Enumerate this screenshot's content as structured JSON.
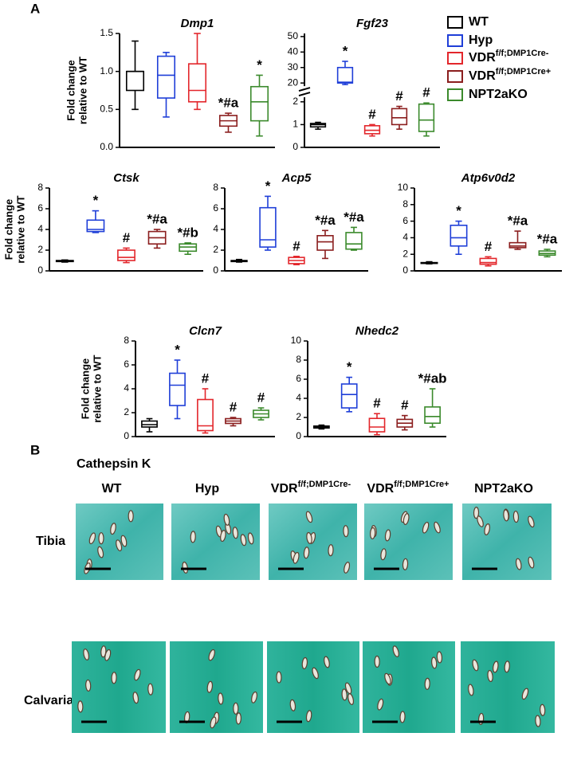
{
  "panel_a": {
    "label": "A"
  },
  "legend": {
    "entries": [
      {
        "label": "WT",
        "color": "#000000"
      },
      {
        "label": "Hyp",
        "color": "#1f3fd8"
      },
      {
        "label": "VDR",
        "label_sup": "f/f;DMP1Cre-",
        "color": "#e3262b"
      },
      {
        "label": "VDR",
        "label_sup": "f/f;DMP1Cre+",
        "color": "#8b1e1e"
      },
      {
        "label": "NPT2aKO",
        "color": "#3b8a2c"
      }
    ]
  },
  "chart_data": [
    {
      "type": "box",
      "title": "Dmp1",
      "ylabel": [
        "Fold change",
        "relative to WT"
      ],
      "ylim": [
        0,
        1.5
      ],
      "yticks": [
        {
          "value": 0,
          "label": "0.0"
        },
        {
          "value": 0.5,
          "label": "0.5"
        },
        {
          "value": 1,
          "label": "1.0"
        },
        {
          "value": 1.5,
          "label": "1.5"
        }
      ],
      "boxes": [
        {
          "stats": [
            0.5,
            0.75,
            1.0,
            1.0,
            1.4
          ]
        },
        {
          "stats": [
            0.4,
            0.65,
            0.95,
            1.2,
            1.25
          ]
        },
        {
          "stats": [
            0.5,
            0.6,
            0.75,
            1.1,
            1.5
          ]
        },
        {
          "stats": [
            0.2,
            0.28,
            0.35,
            0.42,
            0.45
          ],
          "annotation": "*#a"
        },
        {
          "stats": [
            0.15,
            0.35,
            0.6,
            0.8,
            0.95
          ],
          "annotation": "*"
        }
      ]
    },
    {
      "type": "box",
      "title": "Fgf23",
      "broken_axis": true,
      "ylim": [
        0,
        2.2
      ],
      "yticks": [
        0,
        1,
        2
      ],
      "upper_ylim": [
        18,
        52
      ],
      "upper_yticks": [
        20,
        30,
        40,
        50
      ],
      "boxes": [
        {
          "stats": [
            0.8,
            0.9,
            1.0,
            1.05,
            1.1
          ]
        },
        {
          "stats": [
            19,
            20,
            20.5,
            30,
            34
          ],
          "axis": "upper",
          "annotation": "*"
        },
        {
          "stats": [
            0.5,
            0.6,
            0.75,
            0.95,
            1.0
          ],
          "annotation": "#"
        },
        {
          "stats": [
            0.8,
            1.0,
            1.3,
            1.7,
            1.8
          ],
          "annotation": "#"
        },
        {
          "stats": [
            0.5,
            0.7,
            1.2,
            1.9,
            1.95
          ],
          "annotation": "#"
        }
      ]
    },
    {
      "type": "box",
      "title": "Ctsk",
      "ylabel": [
        "Fold change",
        "relative to WT"
      ],
      "ylim": [
        0,
        8
      ],
      "yticks": [
        0,
        2,
        4,
        6,
        8
      ],
      "boxes": [
        {
          "stats": [
            0.85,
            0.9,
            0.95,
            1.0,
            1.05
          ]
        },
        {
          "stats": [
            3.7,
            3.8,
            4.0,
            4.9,
            5.8
          ],
          "annotation": "*"
        },
        {
          "stats": [
            0.8,
            1.0,
            1.3,
            2.0,
            2.2
          ],
          "annotation": "#"
        },
        {
          "stats": [
            2.2,
            2.6,
            3.2,
            3.8,
            4.0
          ],
          "annotation": "*#a"
        },
        {
          "stats": [
            1.6,
            1.9,
            2.3,
            2.6,
            2.7
          ],
          "annotation": "*#b"
        }
      ]
    },
    {
      "type": "box",
      "title": "Acp5",
      "ylim": [
        0,
        8
      ],
      "yticks": [
        0,
        2,
        4,
        6,
        8
      ],
      "boxes": [
        {
          "stats": [
            0.85,
            0.9,
            0.95,
            1.0,
            1.1
          ]
        },
        {
          "stats": [
            2.0,
            2.3,
            3.0,
            6.1,
            7.2
          ],
          "annotation": "*"
        },
        {
          "stats": [
            0.6,
            0.7,
            1.0,
            1.3,
            1.4
          ],
          "annotation": "#"
        },
        {
          "stats": [
            1.2,
            2.0,
            2.8,
            3.4,
            3.9
          ],
          "annotation": "*#a"
        },
        {
          "stats": [
            2.0,
            2.1,
            2.6,
            3.7,
            4.2
          ],
          "annotation": "*#a"
        }
      ]
    },
    {
      "type": "box",
      "title": "Atp6v0d2",
      "ylim": [
        0,
        10
      ],
      "yticks": [
        0,
        2,
        4,
        6,
        8,
        10
      ],
      "boxes": [
        {
          "stats": [
            0.85,
            0.9,
            0.95,
            1.0,
            1.1
          ]
        },
        {
          "stats": [
            2.0,
            3.0,
            4.0,
            5.5,
            6.0
          ],
          "annotation": "*"
        },
        {
          "stats": [
            0.6,
            0.8,
            1.0,
            1.5,
            1.7
          ],
          "annotation": "#"
        },
        {
          "stats": [
            2.6,
            2.8,
            3.0,
            3.4,
            4.8
          ],
          "annotation": "*#a"
        },
        {
          "stats": [
            1.7,
            1.9,
            2.1,
            2.4,
            2.6
          ],
          "annotation": "*#a"
        }
      ]
    },
    {
      "type": "box",
      "title": "Clcn7",
      "ylabel": [
        "Fold change",
        "relative to WT"
      ],
      "ylim": [
        0,
        8
      ],
      "yticks": [
        0,
        2,
        4,
        6,
        8
      ],
      "boxes": [
        {
          "stats": [
            0.4,
            0.8,
            1.0,
            1.3,
            1.5
          ]
        },
        {
          "stats": [
            1.5,
            2.6,
            4.3,
            5.3,
            6.4
          ],
          "annotation": "*"
        },
        {
          "stats": [
            0.3,
            0.5,
            0.9,
            3.1,
            4.0
          ],
          "annotation": "#"
        },
        {
          "stats": [
            0.9,
            1.1,
            1.3,
            1.5,
            1.6
          ],
          "annotation": "#"
        },
        {
          "stats": [
            1.4,
            1.6,
            1.9,
            2.2,
            2.4
          ],
          "annotation": "#"
        }
      ]
    },
    {
      "type": "box",
      "title": "Nhedc2",
      "ylim": [
        0,
        10
      ],
      "yticks": [
        0,
        2,
        4,
        6,
        8,
        10
      ],
      "boxes": [
        {
          "stats": [
            0.8,
            0.9,
            1.0,
            1.1,
            1.2
          ]
        },
        {
          "stats": [
            2.6,
            3.0,
            4.4,
            5.5,
            6.2
          ],
          "annotation": "*"
        },
        {
          "stats": [
            0.2,
            0.5,
            1.0,
            1.9,
            2.4
          ],
          "annotation": "#"
        },
        {
          "stats": [
            0.7,
            1.0,
            1.4,
            1.8,
            2.2
          ],
          "annotation": "#"
        },
        {
          "stats": [
            1.0,
            1.4,
            2.1,
            3.1,
            5.0
          ],
          "annotation": "*#ab"
        }
      ]
    }
  ],
  "panel_b": {
    "label": "B",
    "stain": "Cathepsin K",
    "columns": [
      {
        "label": "WT"
      },
      {
        "label": "Hyp"
      },
      {
        "label": "VDR",
        "label_sup": "f/f;DMP1Cre-"
      },
      {
        "label": "VDR",
        "label_sup": "f/f;DMP1Cre+"
      },
      {
        "label": "NPT2aKO"
      }
    ],
    "rows": [
      "Tibia",
      "Calvaria"
    ]
  }
}
